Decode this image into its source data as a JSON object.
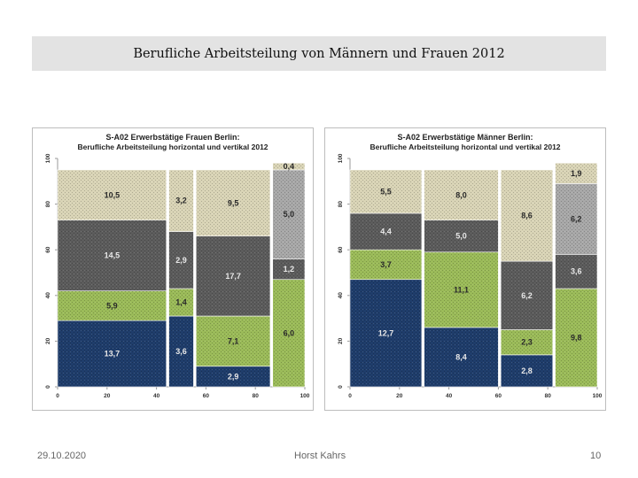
{
  "slide": {
    "title": "Berufliche Arbeitsteilung von Männern und Frauen 2012",
    "footer": {
      "date": "29.10.2020",
      "author": "Horst Kahrs",
      "page": "10"
    }
  },
  "colors": {
    "dark_blue": "#1f3d6b",
    "green": "#9bbb59",
    "dark_gray": "#5c5c5c",
    "beige": "#d9d4b6",
    "light_gray": "#a8a8a8"
  },
  "chart_data": [
    {
      "type": "bar",
      "subtype": "marimekko",
      "title": "S-A02 Erwerbstätige Frauen Berlin:",
      "subtitle": "Berufliche Arbeitsteilung horizontal und vertikal 2012",
      "xlim": [
        0,
        100
      ],
      "ylim": [
        0,
        100
      ],
      "x_ticks": [
        "0",
        "20",
        "40",
        "60",
        "80",
        "100"
      ],
      "y_ticks": [
        "0",
        "20",
        "40",
        "60",
        "80",
        "100"
      ],
      "columns": [
        {
          "x0": 0,
          "x1": 44,
          "segments": [
            {
              "value": 13.7,
              "label": "13,7",
              "y0": 0,
              "y1": 29,
              "color": "#1f3d6b"
            },
            {
              "value": 5.9,
              "label": "5,9",
              "y0": 29,
              "y1": 42,
              "color": "#9bbb59"
            },
            {
              "value": 14.5,
              "label": "14,5",
              "y0": 42,
              "y1": 73,
              "color": "#5c5c5c"
            },
            {
              "value": 10.5,
              "label": "10,5",
              "y0": 73,
              "y1": 95,
              "color": "#d9d4b6"
            }
          ]
        },
        {
          "x0": 45,
          "x1": 55,
          "segments": [
            {
              "value": 3.6,
              "label": "3,6",
              "y0": 0,
              "y1": 31,
              "color": "#1f3d6b"
            },
            {
              "value": 1.4,
              "label": "1,4",
              "y0": 31,
              "y1": 43,
              "color": "#9bbb59"
            },
            {
              "value": 2.9,
              "label": "2,9",
              "y0": 43,
              "y1": 68,
              "color": "#5c5c5c"
            },
            {
              "value": 3.2,
              "label": "3,2",
              "y0": 68,
              "y1": 95,
              "color": "#d9d4b6"
            }
          ]
        },
        {
          "x0": 56,
          "x1": 86,
          "segments": [
            {
              "value": 2.9,
              "label": "2,9",
              "y0": 0,
              "y1": 9,
              "color": "#1f3d6b"
            },
            {
              "value": 7.1,
              "label": "7,1",
              "y0": 9,
              "y1": 31,
              "color": "#9bbb59"
            },
            {
              "value": 17.7,
              "label": "17,7",
              "y0": 31,
              "y1": 66,
              "color": "#5c5c5c"
            },
            {
              "value": 9.5,
              "label": "9,5",
              "y0": 66,
              "y1": 95,
              "color": "#d9d4b6"
            }
          ]
        },
        {
          "x0": 87,
          "x1": 100,
          "segments": [
            {
              "value": 6.0,
              "label": "6,0",
              "y0": 0,
              "y1": 47,
              "color": "#9bbb59"
            },
            {
              "value": 1.2,
              "label": "1,2",
              "y0": 47,
              "y1": 56,
              "color": "#5c5c5c"
            },
            {
              "value": 5.0,
              "label": "5,0",
              "y0": 56,
              "y1": 95,
              "color": "#a8a8a8"
            },
            {
              "value": 0.4,
              "label": "0,4",
              "y0": 95,
              "y1": 98,
              "color": "#d9d4b6"
            }
          ]
        }
      ]
    },
    {
      "type": "bar",
      "subtype": "marimekko",
      "title": "S-A02 Erwerbstätige Männer Berlin:",
      "subtitle": "Berufliche Arbeitsteilung horizontal und vertikal 2012",
      "xlim": [
        0,
        100
      ],
      "ylim": [
        0,
        100
      ],
      "x_ticks": [
        "0",
        "20",
        "40",
        "60",
        "80",
        "100"
      ],
      "y_ticks": [
        "0",
        "20",
        "40",
        "60",
        "80",
        "100"
      ],
      "columns": [
        {
          "x0": 0,
          "x1": 29,
          "segments": [
            {
              "value": 12.7,
              "label": "12,7",
              "y0": 0,
              "y1": 47,
              "color": "#1f3d6b"
            },
            {
              "value": 3.7,
              "label": "3,7",
              "y0": 47,
              "y1": 60,
              "color": "#9bbb59"
            },
            {
              "value": 4.4,
              "label": "4,4",
              "y0": 60,
              "y1": 76,
              "color": "#5c5c5c"
            },
            {
              "value": 5.5,
              "label": "5,5",
              "y0": 76,
              "y1": 95,
              "color": "#d9d4b6"
            }
          ]
        },
        {
          "x0": 30,
          "x1": 60,
          "segments": [
            {
              "value": 8.4,
              "label": "8,4",
              "y0": 0,
              "y1": 26,
              "color": "#1f3d6b"
            },
            {
              "value": 11.1,
              "label": "11,1",
              "y0": 26,
              "y1": 59,
              "color": "#9bbb59"
            },
            {
              "value": 5.0,
              "label": "5,0",
              "y0": 59,
              "y1": 73,
              "color": "#5c5c5c"
            },
            {
              "value": 8.0,
              "label": "8,0",
              "y0": 73,
              "y1": 95,
              "color": "#d9d4b6"
            }
          ]
        },
        {
          "x0": 61,
          "x1": 82,
          "segments": [
            {
              "value": 2.8,
              "label": "2,8",
              "y0": 0,
              "y1": 14,
              "color": "#1f3d6b"
            },
            {
              "value": 2.3,
              "label": "2,3",
              "y0": 14,
              "y1": 25,
              "color": "#9bbb59"
            },
            {
              "value": 6.2,
              "label": "6,2",
              "y0": 25,
              "y1": 55,
              "color": "#5c5c5c"
            },
            {
              "value": 8.6,
              "label": "8,6",
              "y0": 55,
              "y1": 95,
              "color": "#d9d4b6"
            }
          ]
        },
        {
          "x0": 83,
          "x1": 100,
          "segments": [
            {
              "value": 9.8,
              "label": "9,8",
              "y0": 0,
              "y1": 43,
              "color": "#9bbb59"
            },
            {
              "value": 3.6,
              "label": "3,6",
              "y0": 43,
              "y1": 58,
              "color": "#5c5c5c"
            },
            {
              "value": 6.2,
              "label": "6,2",
              "y0": 58,
              "y1": 89,
              "color": "#a8a8a8"
            },
            {
              "value": 1.9,
              "label": "1,9",
              "y0": 89,
              "y1": 98,
              "color": "#d9d4b6"
            }
          ]
        }
      ]
    }
  ]
}
